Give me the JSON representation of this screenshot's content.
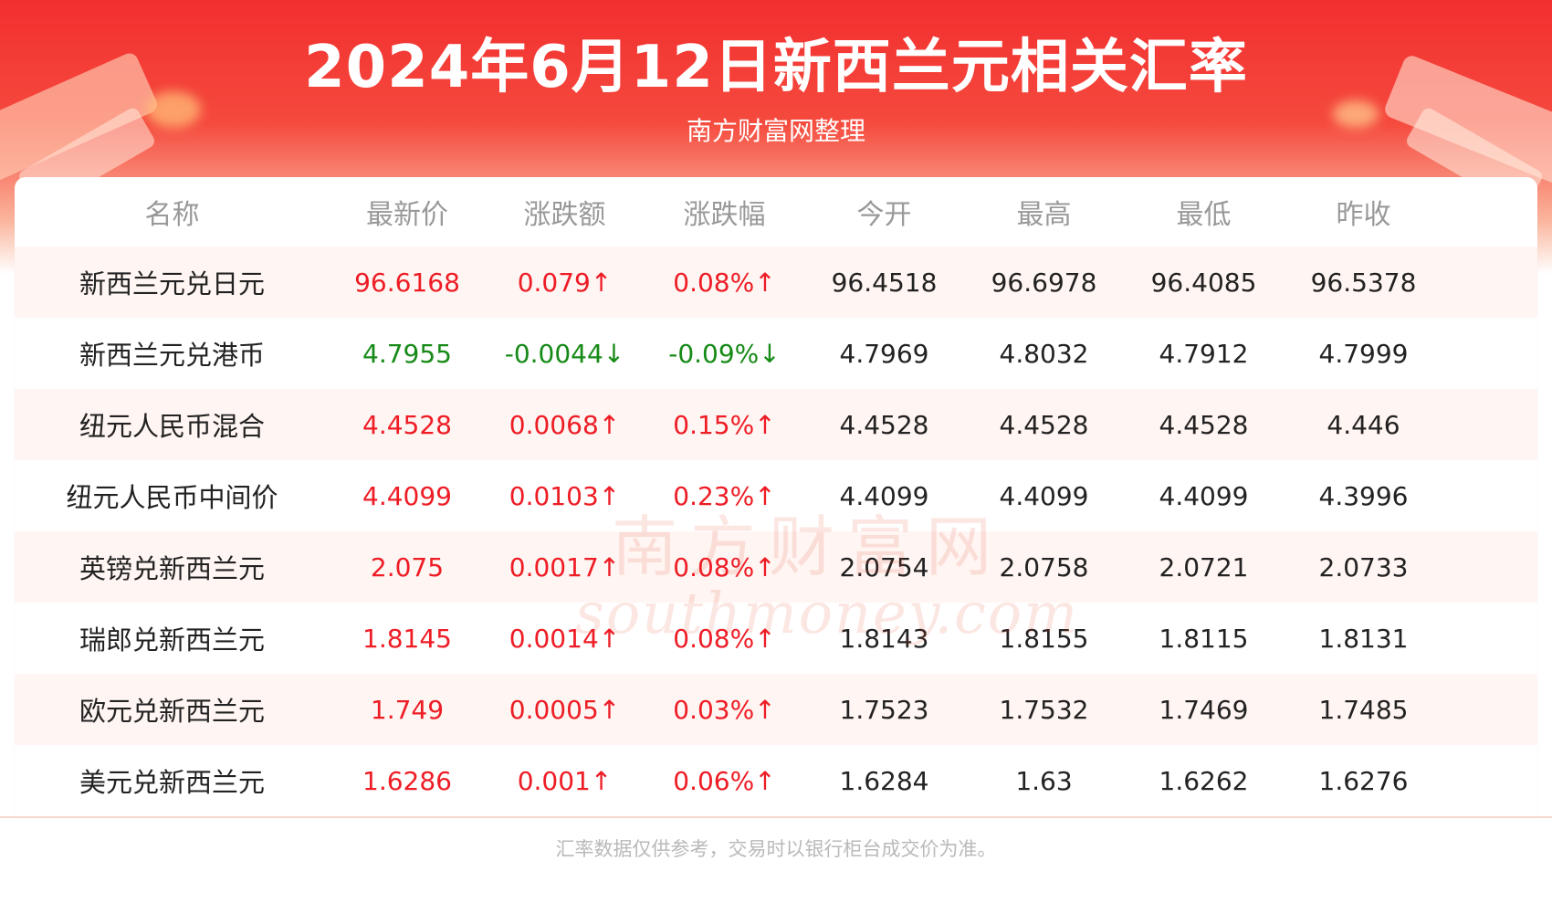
{
  "header": {
    "title": "2024年6月12日新西兰元相关汇率",
    "subtitle": "南方财富网整理"
  },
  "colors": {
    "up": "#ee1c25",
    "down": "#168a16",
    "banner": "#f22f2f",
    "row_stripe": "#fff5f2"
  },
  "table": {
    "columns": [
      "名称",
      "最新价",
      "涨跌额",
      "涨跌幅",
      "今开",
      "最高",
      "最低",
      "昨收"
    ],
    "rows": [
      {
        "name": "新西兰元兑日元",
        "latest": "96.6168",
        "change": "0.079↑",
        "pct": "0.08%↑",
        "open": "96.4518",
        "high": "96.6978",
        "low": "96.4085",
        "prev": "96.5378",
        "dir": "up"
      },
      {
        "name": "新西兰元兑港币",
        "latest": "4.7955",
        "change": "-0.0044↓",
        "pct": "-0.09%↓",
        "open": "4.7969",
        "high": "4.8032",
        "low": "4.7912",
        "prev": "4.7999",
        "dir": "down"
      },
      {
        "name": "纽元人民币混合",
        "latest": "4.4528",
        "change": "0.0068↑",
        "pct": "0.15%↑",
        "open": "4.4528",
        "high": "4.4528",
        "low": "4.4528",
        "prev": "4.446",
        "dir": "up"
      },
      {
        "name": "纽元人民币中间价",
        "latest": "4.4099",
        "change": "0.0103↑",
        "pct": "0.23%↑",
        "open": "4.4099",
        "high": "4.4099",
        "low": "4.4099",
        "prev": "4.3996",
        "dir": "up"
      },
      {
        "name": "英镑兑新西兰元",
        "latest": "2.075",
        "change": "0.0017↑",
        "pct": "0.08%↑",
        "open": "2.0754",
        "high": "2.0758",
        "low": "2.0721",
        "prev": "2.0733",
        "dir": "up"
      },
      {
        "name": "瑞郎兑新西兰元",
        "latest": "1.8145",
        "change": "0.0014↑",
        "pct": "0.08%↑",
        "open": "1.8143",
        "high": "1.8155",
        "low": "1.8115",
        "prev": "1.8131",
        "dir": "up"
      },
      {
        "name": "欧元兑新西兰元",
        "latest": "1.749",
        "change": "0.0005↑",
        "pct": "0.03%↑",
        "open": "1.7523",
        "high": "1.7532",
        "low": "1.7469",
        "prev": "1.7485",
        "dir": "up"
      },
      {
        "name": "美元兑新西兰元",
        "latest": "1.6286",
        "change": "0.001↑",
        "pct": "0.06%↑",
        "open": "1.6284",
        "high": "1.63",
        "low": "1.6262",
        "prev": "1.6276",
        "dir": "up"
      }
    ]
  },
  "watermark": {
    "cn": "南方财富网",
    "en": "southmoney.com"
  },
  "footer": {
    "note": "汇率数据仅供参考，交易时以银行柜台成交价为准。"
  }
}
